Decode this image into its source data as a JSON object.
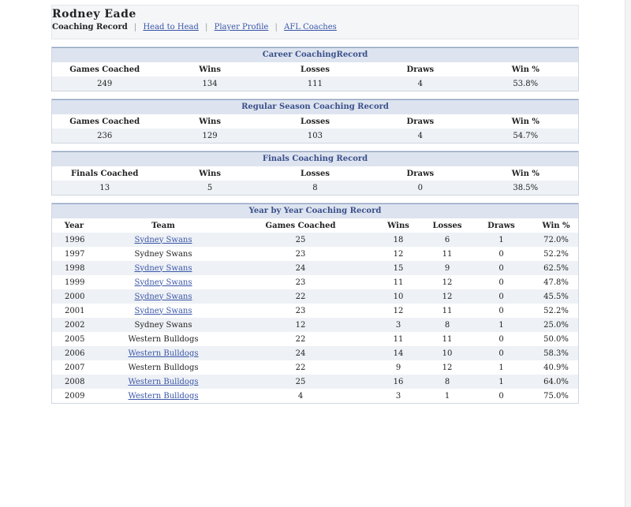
{
  "page": {
    "title": "Rodney Eade",
    "nav": {
      "current": "Coaching Record",
      "links": [
        "Head to Head",
        "Player Profile",
        "AFL Coaches"
      ]
    }
  },
  "career": {
    "heading": "Career CoachingRecord",
    "headers": [
      "Games Coached",
      "Wins",
      "Losses",
      "Draws",
      "Win %"
    ],
    "values": [
      "249",
      "134",
      "111",
      "4",
      "53.8%"
    ]
  },
  "regular": {
    "heading": "Regular Season Coaching Record",
    "headers": [
      "Games Coached",
      "Wins",
      "Losses",
      "Draws",
      "Win %"
    ],
    "values": [
      "236",
      "129",
      "103",
      "4",
      "54.7%"
    ]
  },
  "finals": {
    "heading": "Finals Coaching Record",
    "headers": [
      "Finals Coached",
      "Wins",
      "Losses",
      "Draws",
      "Win %"
    ],
    "values": [
      "13",
      "5",
      "8",
      "0",
      "38.5%"
    ]
  },
  "yearly": {
    "heading": "Year by Year Coaching Record",
    "headers": [
      "Year",
      "Team",
      "Games Coached",
      "Wins",
      "Losses",
      "Draws",
      "Win %"
    ],
    "rows": [
      {
        "year": "1996",
        "team": "Sydney Swans",
        "games": "25",
        "wins": "18",
        "losses": "6",
        "draws": "1",
        "pct": "72.0%",
        "link": true
      },
      {
        "year": "1997",
        "team": "Sydney Swans",
        "games": "23",
        "wins": "12",
        "losses": "11",
        "draws": "0",
        "pct": "52.2%",
        "link": false
      },
      {
        "year": "1998",
        "team": "Sydney Swans",
        "games": "24",
        "wins": "15",
        "losses": "9",
        "draws": "0",
        "pct": "62.5%",
        "link": true
      },
      {
        "year": "1999",
        "team": "Sydney Swans",
        "games": "23",
        "wins": "11",
        "losses": "12",
        "draws": "0",
        "pct": "47.8%",
        "link": true
      },
      {
        "year": "2000",
        "team": "Sydney Swans",
        "games": "22",
        "wins": "10",
        "losses": "12",
        "draws": "0",
        "pct": "45.5%",
        "link": true
      },
      {
        "year": "2001",
        "team": "Sydney Swans",
        "games": "23",
        "wins": "12",
        "losses": "11",
        "draws": "0",
        "pct": "52.2%",
        "link": true
      },
      {
        "year": "2002",
        "team": "Sydney Swans",
        "games": "12",
        "wins": "3",
        "losses": "8",
        "draws": "1",
        "pct": "25.0%",
        "link": false
      },
      {
        "year": "2005",
        "team": "Western Bulldogs",
        "games": "22",
        "wins": "11",
        "losses": "11",
        "draws": "0",
        "pct": "50.0%",
        "link": false
      },
      {
        "year": "2006",
        "team": "Western Bulldogs",
        "games": "24",
        "wins": "14",
        "losses": "10",
        "draws": "0",
        "pct": "58.3%",
        "link": true
      },
      {
        "year": "2007",
        "team": "Western Bulldogs",
        "games": "22",
        "wins": "9",
        "losses": "12",
        "draws": "1",
        "pct": "40.9%",
        "link": false
      },
      {
        "year": "2008",
        "team": "Western Bulldogs",
        "games": "25",
        "wins": "16",
        "losses": "8",
        "draws": "1",
        "pct": "64.0%",
        "link": true
      },
      {
        "year": "2009",
        "team": "Western Bulldogs",
        "games": "4",
        "wins": "3",
        "losses": "1",
        "draws": "0",
        "pct": "75.0%",
        "link": true
      }
    ]
  },
  "colors": {
    "panel_header_bg": "#dde4ef",
    "panel_header_text": "#3a4f8a",
    "link": "#3a56a8",
    "row_alt": "#eef1f5"
  }
}
